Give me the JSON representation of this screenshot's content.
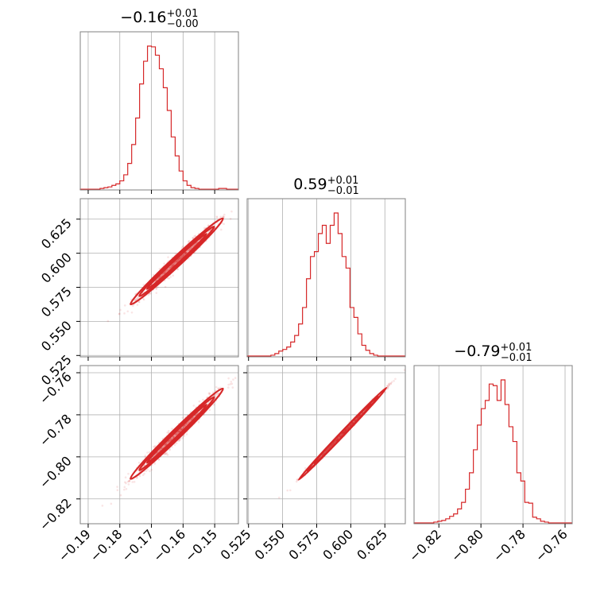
{
  "chart_data": {
    "type": "corner",
    "color": "#d62728",
    "parameters": [
      {
        "title": {
          "median": "−0.16",
          "plus": "+0.01",
          "minus": "−0.00"
        },
        "range": [
          -0.1925,
          -0.1425
        ],
        "ticks": [
          -0.19,
          -0.18,
          -0.17,
          -0.16,
          -0.15
        ],
        "tick_labels": [
          "−0.19",
          "−0.18",
          "−0.17",
          "−0.16",
          "−0.15"
        ],
        "mean": -0.162,
        "sd": 0.005,
        "hist": {
          "bin_start": -0.1925,
          "bin_width": 0.00125,
          "counts": [
            1,
            1,
            1,
            1,
            1,
            2,
            3,
            4,
            6,
            8,
            12,
            20,
            35,
            60,
            95,
            140,
            170,
            190,
            189,
            178,
            160,
            135,
            105,
            70,
            45,
            25,
            12,
            6,
            3,
            2,
            1,
            1,
            1,
            1,
            1,
            2,
            2,
            1,
            1,
            1
          ]
        }
      },
      {
        "title": {
          "median": "0.59",
          "plus": "+0.01",
          "minus": "−0.01"
        },
        "range": [
          0.524,
          0.64
        ],
        "ticks": [
          0.525,
          0.55,
          0.575,
          0.6,
          0.625
        ],
        "tick_labels": [
          "0.525",
          "0.550",
          "0.575",
          "0.600",
          "0.625"
        ],
        "mean": 0.594,
        "sd": 0.011,
        "hist": {
          "bin_start": 0.524,
          "bin_width": 0.0029,
          "counts": [
            1,
            1,
            1,
            1,
            1,
            1,
            2,
            4,
            7,
            9,
            12,
            18,
            26,
            40,
            60,
            95,
            122,
            128,
            150,
            160,
            138,
            160,
            175,
            150,
            122,
            108,
            60,
            48,
            28,
            14,
            8,
            4,
            2,
            1,
            1,
            1,
            1,
            1,
            1,
            1
          ]
        }
      },
      {
        "title": {
          "median": "−0.79",
          "plus": "+0.01",
          "minus": "−0.01"
        },
        "range": [
          -0.8318,
          -0.7566
        ],
        "ticks": [
          -0.82,
          -0.8,
          -0.78,
          -0.76
        ],
        "tick_labels": [
          "−0.82",
          "−0.80",
          "−0.78",
          "−0.76"
        ],
        "mean": -0.789,
        "sd": 0.0075,
        "hist": {
          "bin_start": -0.8318,
          "bin_width": 0.00188,
          "counts": [
            1,
            1,
            1,
            1,
            1,
            2,
            3,
            4,
            6,
            9,
            12,
            18,
            26,
            42,
            62,
            90,
            120,
            140,
            150,
            170,
            168,
            150,
            175,
            145,
            118,
            100,
            62,
            52,
            26,
            25,
            8,
            6,
            3,
            2,
            1,
            1,
            1,
            1,
            1,
            1
          ]
        }
      }
    ],
    "pairs": [
      {
        "x": 0,
        "y": 1,
        "correlation": 0.98,
        "contour_width_sd": [
          0.25,
          0.55,
          0.85,
          1.2
        ]
      },
      {
        "x": 0,
        "y": 2,
        "correlation": 0.98,
        "contour_width_sd": [
          0.25,
          0.55,
          0.85,
          1.2
        ]
      },
      {
        "x": 1,
        "y": 2,
        "correlation": 0.998,
        "contour_width_sd": [
          0.25,
          0.55,
          0.85,
          1.2
        ]
      }
    ]
  }
}
